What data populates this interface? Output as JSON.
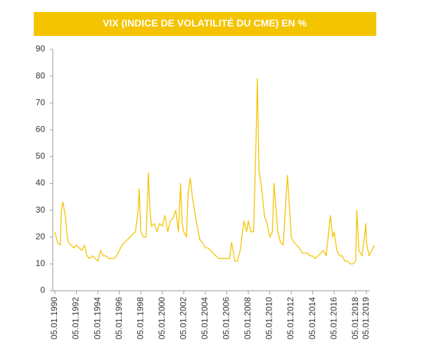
{
  "chart_data": {
    "type": "line",
    "title": "VIX (INDICE DE VOLATILITÉ DU CME) EN %",
    "color": "#f5c400",
    "x": [
      1990.0,
      1990.25,
      1990.5,
      1990.6,
      1990.75,
      1991.0,
      1991.1,
      1991.25,
      1991.5,
      1991.75,
      1992.0,
      1992.25,
      1992.5,
      1992.75,
      1993.0,
      1993.25,
      1993.5,
      1993.75,
      1994.0,
      1994.25,
      1994.5,
      1994.75,
      1995.0,
      1995.25,
      1995.5,
      1995.75,
      1996.0,
      1996.25,
      1996.5,
      1996.75,
      1997.0,
      1997.25,
      1997.5,
      1997.75,
      1997.85,
      1998.0,
      1998.25,
      1998.5,
      1998.7,
      1998.85,
      1999.0,
      1999.25,
      1999.5,
      1999.75,
      2000.0,
      2000.25,
      2000.5,
      2000.75,
      2001.0,
      2001.25,
      2001.5,
      2001.7,
      2001.85,
      2002.0,
      2002.25,
      2002.4,
      2002.6,
      2002.8,
      2003.0,
      2003.25,
      2003.5,
      2003.75,
      2004.0,
      2004.25,
      2004.5,
      2004.75,
      2005.0,
      2005.25,
      2005.5,
      2005.75,
      2006.0,
      2006.25,
      2006.45,
      2006.75,
      2007.0,
      2007.25,
      2007.6,
      2007.85,
      2008.0,
      2008.25,
      2008.5,
      2008.75,
      2008.85,
      2009.0,
      2009.25,
      2009.5,
      2009.75,
      2010.0,
      2010.25,
      2010.4,
      2010.75,
      2011.0,
      2011.25,
      2011.65,
      2011.85,
      2012.0,
      2012.25,
      2012.5,
      2012.75,
      2013.0,
      2013.25,
      2013.5,
      2013.75,
      2014.0,
      2014.25,
      2014.5,
      2014.75,
      2015.0,
      2015.25,
      2015.65,
      2015.85,
      2016.0,
      2016.25,
      2016.5,
      2016.75,
      2017.0,
      2017.25,
      2017.5,
      2017.75,
      2018.0,
      2018.1,
      2018.3,
      2018.6,
      2018.95,
      2019.0,
      2019.25,
      2019.5,
      2019.75
    ],
    "values": [
      22,
      18,
      17,
      30,
      33,
      27,
      22,
      18,
      17,
      16,
      17,
      16,
      15,
      17,
      13,
      12,
      13,
      12,
      11,
      15,
      13,
      13,
      12,
      12,
      12,
      13,
      15,
      17,
      18,
      19,
      20,
      21,
      22,
      30,
      38,
      22,
      20,
      20,
      44,
      30,
      24,
      25,
      22,
      25,
      24,
      28,
      22,
      26,
      27,
      30,
      22,
      40,
      25,
      22,
      20,
      36,
      42,
      35,
      30,
      24,
      19,
      18,
      16,
      16,
      15,
      14,
      13,
      12,
      12,
      12,
      12,
      12,
      18,
      11,
      11,
      15,
      26,
      22,
      26,
      22,
      22,
      60,
      79,
      45,
      38,
      28,
      25,
      20,
      22,
      40,
      22,
      18,
      17,
      43,
      30,
      20,
      18,
      17,
      16,
      14,
      14,
      14,
      13,
      13,
      12,
      13,
      14,
      15,
      13,
      28,
      20,
      22,
      15,
      13,
      13,
      11,
      11,
      10,
      10,
      11,
      30,
      15,
      13,
      25,
      18,
      13,
      15,
      17
    ],
    "xlim": [
      1990.0,
      2019.0
    ],
    "xticks": [
      {
        "value": 1990,
        "label": "05.01.1990"
      },
      {
        "value": 1992,
        "label": "05.01.1992"
      },
      {
        "value": 1994,
        "label": "05.01.1994"
      },
      {
        "value": 1996,
        "label": "05.01.1996"
      },
      {
        "value": 1998,
        "label": "05.01.1998"
      },
      {
        "value": 2000,
        "label": "05.01.2000"
      },
      {
        "value": 2002,
        "label": "05.01.2002"
      },
      {
        "value": 2004,
        "label": "05.01.2004"
      },
      {
        "value": 2006,
        "label": "05.01.2006"
      },
      {
        "value": 2008,
        "label": "05.01.2008"
      },
      {
        "value": 2010,
        "label": "05.01.2010"
      },
      {
        "value": 2012,
        "label": "05.01.2012"
      },
      {
        "value": 2014,
        "label": "05.01.2014"
      },
      {
        "value": 2016,
        "label": "05.01.2016"
      },
      {
        "value": 2018,
        "label": "05.01.2018"
      },
      {
        "value": 2019,
        "label": "05.01.2019"
      }
    ],
    "ylim": [
      0,
      90
    ],
    "yticks": [
      0,
      10,
      20,
      30,
      40,
      50,
      60,
      70,
      80,
      90
    ],
    "grid": false
  }
}
